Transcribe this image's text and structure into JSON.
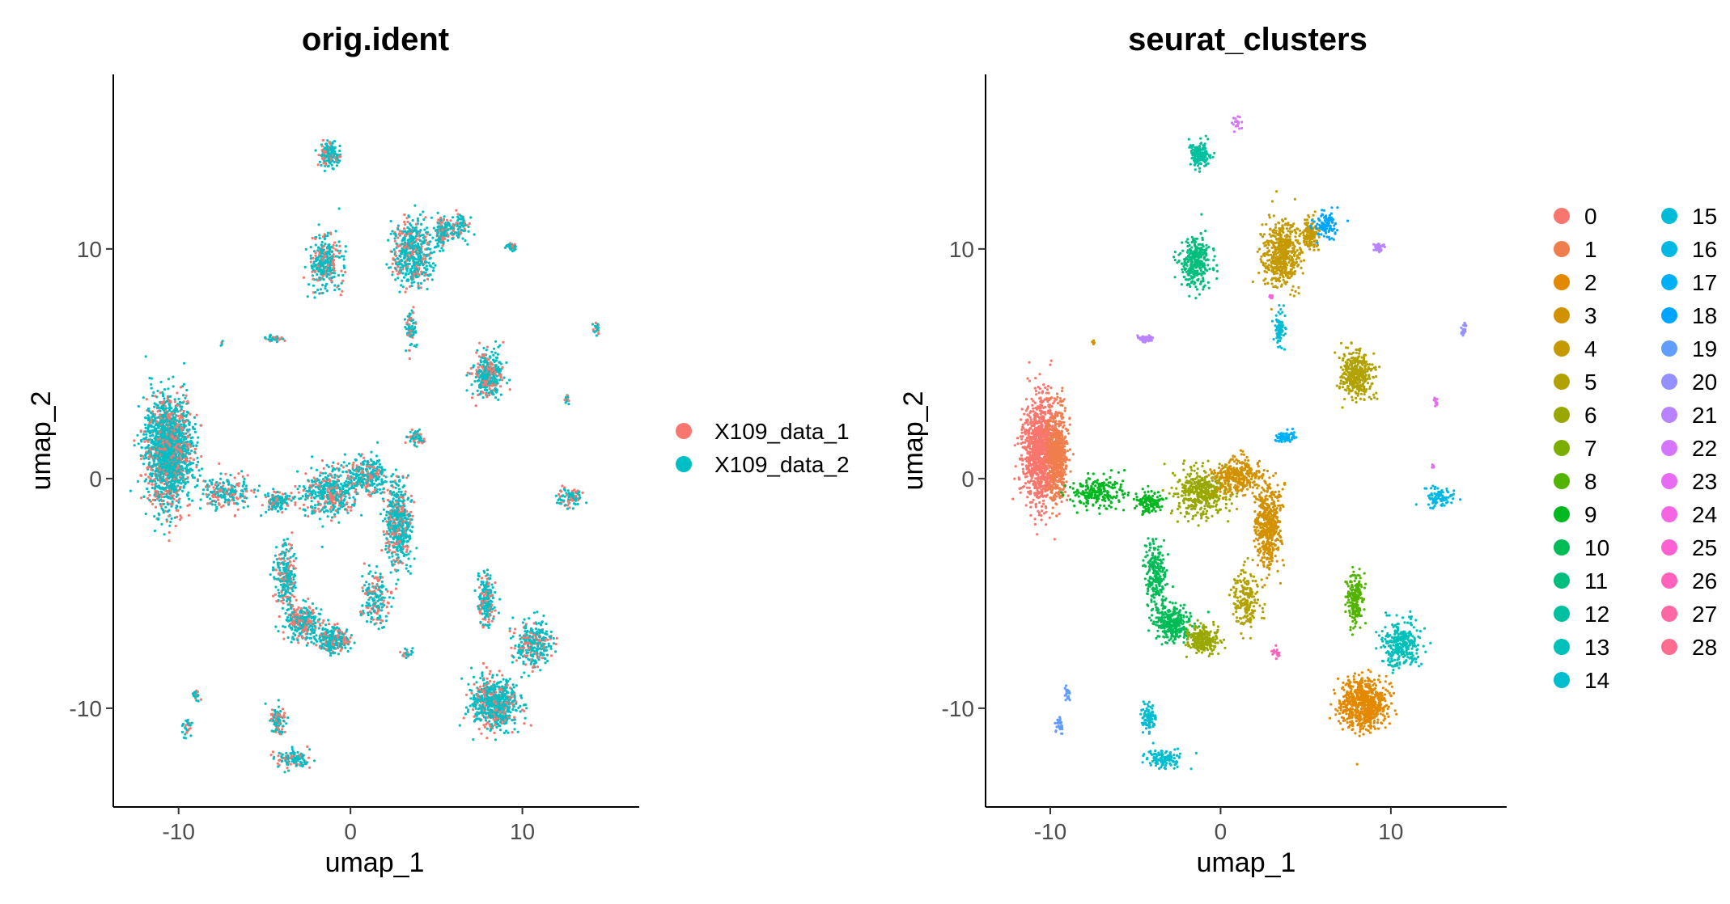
{
  "chart_data": [
    {
      "type": "scatter",
      "title": "orig.ident",
      "xlabel": "umap_1",
      "ylabel": "umap_2",
      "xlim": [
        -13.8,
        16.8
      ],
      "ylim": [
        -14.3,
        17.6
      ],
      "xticks": [
        -10,
        0,
        10
      ],
      "yticks": [
        -10,
        0,
        10
      ],
      "xtick_labels": [
        "-10",
        "0",
        "10"
      ],
      "ytick_labels": [
        "-10",
        "0",
        "10"
      ],
      "grid": false,
      "legend_position": "right",
      "series": [
        {
          "name": "X109_data_1",
          "color": "#F8766D"
        },
        {
          "name": "X109_data_2",
          "color": "#00BFC4"
        }
      ],
      "mix_fraction": 0.3,
      "regions": [
        {
          "x": -10.6,
          "y": 1.2,
          "sx": 1.2,
          "sy": 2.1,
          "w": 1800
        },
        {
          "x": -7.2,
          "y": -0.6,
          "sx": 1.4,
          "sy": 0.6,
          "w": 220
        },
        {
          "x": -4.2,
          "y": -1.0,
          "sx": 0.8,
          "sy": 0.4,
          "w": 120
        },
        {
          "x": -3.8,
          "y": -4.3,
          "sx": 0.55,
          "sy": 1.3,
          "w": 220
        },
        {
          "x": -2.8,
          "y": -6.3,
          "sx": 1.0,
          "sy": 0.7,
          "w": 300
        },
        {
          "x": -1.0,
          "y": -7.0,
          "sx": 0.8,
          "sy": 0.5,
          "w": 250
        },
        {
          "x": -1.2,
          "y": -0.6,
          "sx": 1.4,
          "sy": 0.9,
          "w": 420
        },
        {
          "x": 1.0,
          "y": 0.1,
          "sx": 1.2,
          "sy": 0.7,
          "w": 300
        },
        {
          "x": 2.8,
          "y": -2.0,
          "sx": 0.7,
          "sy": 1.6,
          "w": 480
        },
        {
          "x": 1.5,
          "y": -5.2,
          "sx": 0.7,
          "sy": 1.2,
          "w": 180
        },
        {
          "x": -1.5,
          "y": 9.4,
          "sx": 0.8,
          "sy": 1.0,
          "w": 320
        },
        {
          "x": 3.6,
          "y": 9.8,
          "sx": 1.0,
          "sy": 1.3,
          "w": 520
        },
        {
          "x": 5.3,
          "y": 10.7,
          "sx": 0.4,
          "sy": 0.6,
          "w": 120
        },
        {
          "x": 3.5,
          "y": 6.5,
          "sx": 0.3,
          "sy": 0.7,
          "w": 80
        },
        {
          "x": 8.0,
          "y": 4.5,
          "sx": 0.8,
          "sy": 0.9,
          "w": 360
        },
        {
          "x": 7.9,
          "y": -5.3,
          "sx": 0.4,
          "sy": 1.0,
          "w": 200
        },
        {
          "x": 8.4,
          "y": -9.8,
          "sx": 1.2,
          "sy": 1.0,
          "w": 700
        },
        {
          "x": 10.6,
          "y": -7.2,
          "sx": 1.0,
          "sy": 0.9,
          "w": 300
        },
        {
          "x": -1.2,
          "y": 14.1,
          "sx": 0.6,
          "sy": 0.5,
          "w": 160
        },
        {
          "x": 3.8,
          "y": 1.8,
          "sx": 0.5,
          "sy": 0.25,
          "w": 70
        },
        {
          "x": 6.2,
          "y": 11.0,
          "sx": 0.6,
          "sy": 0.5,
          "w": 100
        },
        {
          "x": 9.3,
          "y": 10.1,
          "sx": 0.3,
          "sy": 0.15,
          "w": 40
        },
        {
          "x": -4.4,
          "y": 6.1,
          "sx": 0.5,
          "sy": 0.15,
          "w": 40
        },
        {
          "x": 14.3,
          "y": 6.5,
          "sx": 0.15,
          "sy": 0.25,
          "w": 20
        },
        {
          "x": 12.6,
          "y": 3.4,
          "sx": 0.12,
          "sy": 0.2,
          "w": 12
        },
        {
          "x": 12.8,
          "y": -0.8,
          "sx": 0.7,
          "sy": 0.35,
          "w": 90
        },
        {
          "x": -9.0,
          "y": -9.4,
          "sx": 0.2,
          "sy": 0.3,
          "w": 20
        },
        {
          "x": -9.5,
          "y": -10.8,
          "sx": 0.2,
          "sy": 0.4,
          "w": 25
        },
        {
          "x": -4.2,
          "y": -10.5,
          "sx": 0.4,
          "sy": 0.6,
          "w": 90
        },
        {
          "x": -3.3,
          "y": -12.2,
          "sx": 0.9,
          "sy": 0.35,
          "w": 120
        },
        {
          "x": 3.3,
          "y": -7.6,
          "sx": 0.3,
          "sy": 0.25,
          "w": 20
        },
        {
          "x": -7.5,
          "y": 5.9,
          "sx": 0.1,
          "sy": 0.1,
          "w": 5
        }
      ]
    },
    {
      "type": "scatter",
      "title": "seurat_clusters",
      "xlabel": "umap_1",
      "ylabel": "umap_2",
      "xlim": [
        -13.8,
        16.8
      ],
      "ylim": [
        -14.3,
        17.6
      ],
      "xticks": [
        -10,
        0,
        10
      ],
      "yticks": [
        -10,
        0,
        10
      ],
      "xtick_labels": [
        "-10",
        "0",
        "10"
      ],
      "ytick_labels": [
        "-10",
        "0",
        "10"
      ],
      "grid": false,
      "legend_position": "right",
      "series": [
        {
          "name": "0",
          "color": "#F8766D"
        },
        {
          "name": "1",
          "color": "#F07E4D"
        },
        {
          "name": "2",
          "color": "#E38900"
        },
        {
          "name": "3",
          "color": "#D29200"
        },
        {
          "name": "4",
          "color": "#C49A00"
        },
        {
          "name": "5",
          "color": "#B1A200"
        },
        {
          "name": "6",
          "color": "#99A800"
        },
        {
          "name": "7",
          "color": "#7CAE00"
        },
        {
          "name": "8",
          "color": "#53B400"
        },
        {
          "name": "9",
          "color": "#00B81F"
        },
        {
          "name": "10",
          "color": "#00BC56"
        },
        {
          "name": "11",
          "color": "#00BF7D"
        },
        {
          "name": "12",
          "color": "#00C19F"
        },
        {
          "name": "13",
          "color": "#00C0BA"
        },
        {
          "name": "14",
          "color": "#00BDD0"
        },
        {
          "name": "15",
          "color": "#00BCD8"
        },
        {
          "name": "16",
          "color": "#00B8E3"
        },
        {
          "name": "17",
          "color": "#00B0F6"
        },
        {
          "name": "18",
          "color": "#00A5FF"
        },
        {
          "name": "19",
          "color": "#619CFF"
        },
        {
          "name": "20",
          "color": "#9590FF"
        },
        {
          "name": "21",
          "color": "#B983FF"
        },
        {
          "name": "22",
          "color": "#D575FE"
        },
        {
          "name": "23",
          "color": "#E76BF3"
        },
        {
          "name": "24",
          "color": "#F564E3"
        },
        {
          "name": "25",
          "color": "#FD61D1"
        },
        {
          "name": "26",
          "color": "#FF62BC"
        },
        {
          "name": "27",
          "color": "#FF67A4"
        },
        {
          "name": "28",
          "color": "#FF6C90"
        }
      ],
      "regions": [
        {
          "x": -10.6,
          "y": 1.2,
          "sx": 0.9,
          "sy": 2.1,
          "w": 1100,
          "c": 0
        },
        {
          "x": -9.6,
          "y": 1.0,
          "sx": 0.55,
          "sy": 1.8,
          "w": 600,
          "c": 1
        },
        {
          "x": -7.2,
          "y": -0.6,
          "sx": 1.4,
          "sy": 0.6,
          "w": 220,
          "c": 9
        },
        {
          "x": -4.2,
          "y": -1.0,
          "sx": 0.8,
          "sy": 0.4,
          "w": 120,
          "c": 9
        },
        {
          "x": -3.8,
          "y": -4.3,
          "sx": 0.55,
          "sy": 1.3,
          "w": 220,
          "c": 10
        },
        {
          "x": -2.8,
          "y": -6.3,
          "sx": 1.0,
          "sy": 0.7,
          "w": 300,
          "c": 10
        },
        {
          "x": -1.0,
          "y": -7.0,
          "sx": 0.8,
          "sy": 0.5,
          "w": 250,
          "c": 6
        },
        {
          "x": -1.2,
          "y": -0.6,
          "sx": 1.4,
          "sy": 0.9,
          "w": 420,
          "c": 6
        },
        {
          "x": 1.0,
          "y": 0.1,
          "sx": 1.2,
          "sy": 0.7,
          "w": 300,
          "c": 3
        },
        {
          "x": 2.8,
          "y": -2.0,
          "sx": 0.7,
          "sy": 1.6,
          "w": 480,
          "c": 3
        },
        {
          "x": 1.5,
          "y": -5.2,
          "sx": 0.7,
          "sy": 1.2,
          "w": 180,
          "c": 5
        },
        {
          "x": -1.5,
          "y": 9.4,
          "sx": 0.8,
          "sy": 1.0,
          "w": 320,
          "c": 11
        },
        {
          "x": 3.6,
          "y": 9.8,
          "sx": 1.0,
          "sy": 1.3,
          "w": 520,
          "c": 4
        },
        {
          "x": 5.3,
          "y": 10.7,
          "sx": 0.4,
          "sy": 0.6,
          "w": 120,
          "c": 4
        },
        {
          "x": 3.5,
          "y": 6.5,
          "sx": 0.3,
          "sy": 0.7,
          "w": 80,
          "c": 15
        },
        {
          "x": 8.0,
          "y": 4.5,
          "sx": 0.8,
          "sy": 0.9,
          "w": 360,
          "c": 5
        },
        {
          "x": 7.9,
          "y": -5.3,
          "sx": 0.4,
          "sy": 1.0,
          "w": 200,
          "c": 8
        },
        {
          "x": 8.4,
          "y": -9.8,
          "sx": 1.2,
          "sy": 1.0,
          "w": 700,
          "c": 2
        },
        {
          "x": 10.6,
          "y": -7.2,
          "sx": 1.0,
          "sy": 0.9,
          "w": 300,
          "c": 13
        },
        {
          "x": -1.2,
          "y": 14.1,
          "sx": 0.6,
          "sy": 0.5,
          "w": 160,
          "c": 12
        },
        {
          "x": 3.8,
          "y": 1.8,
          "sx": 0.5,
          "sy": 0.25,
          "w": 70,
          "c": 17
        },
        {
          "x": 6.2,
          "y": 11.0,
          "sx": 0.6,
          "sy": 0.5,
          "w": 100,
          "c": 18
        },
        {
          "x": 9.3,
          "y": 10.1,
          "sx": 0.3,
          "sy": 0.15,
          "w": 40,
          "c": 21
        },
        {
          "x": -4.4,
          "y": 6.1,
          "sx": 0.5,
          "sy": 0.15,
          "w": 40,
          "c": 21
        },
        {
          "x": 14.3,
          "y": 6.5,
          "sx": 0.15,
          "sy": 0.25,
          "w": 20,
          "c": 20
        },
        {
          "x": 12.6,
          "y": 3.4,
          "sx": 0.12,
          "sy": 0.2,
          "w": 12,
          "c": 23
        },
        {
          "x": 12.8,
          "y": -0.8,
          "sx": 0.7,
          "sy": 0.35,
          "w": 90,
          "c": 16
        },
        {
          "x": -9.0,
          "y": -9.4,
          "sx": 0.2,
          "sy": 0.3,
          "w": 20,
          "c": 19
        },
        {
          "x": -9.5,
          "y": -10.8,
          "sx": 0.2,
          "sy": 0.4,
          "w": 25,
          "c": 19
        },
        {
          "x": -4.2,
          "y": -10.5,
          "sx": 0.4,
          "sy": 0.6,
          "w": 90,
          "c": 14
        },
        {
          "x": -3.3,
          "y": -12.2,
          "sx": 0.9,
          "sy": 0.35,
          "w": 120,
          "c": 14
        },
        {
          "x": 3.3,
          "y": -7.6,
          "sx": 0.3,
          "sy": 0.25,
          "w": 20,
          "c": 26
        },
        {
          "x": -7.5,
          "y": 5.9,
          "sx": 0.1,
          "sy": 0.1,
          "w": 5,
          "c": 3
        },
        {
          "x": 1.0,
          "y": 15.5,
          "sx": 0.3,
          "sy": 0.3,
          "w": 20,
          "c": 22
        },
        {
          "x": 3.0,
          "y": 7.9,
          "sx": 0.1,
          "sy": 0.1,
          "w": 8,
          "c": 24
        },
        {
          "x": 12.5,
          "y": 0.5,
          "sx": 0.1,
          "sy": 0.1,
          "w": 6,
          "c": 23
        }
      ]
    }
  ]
}
